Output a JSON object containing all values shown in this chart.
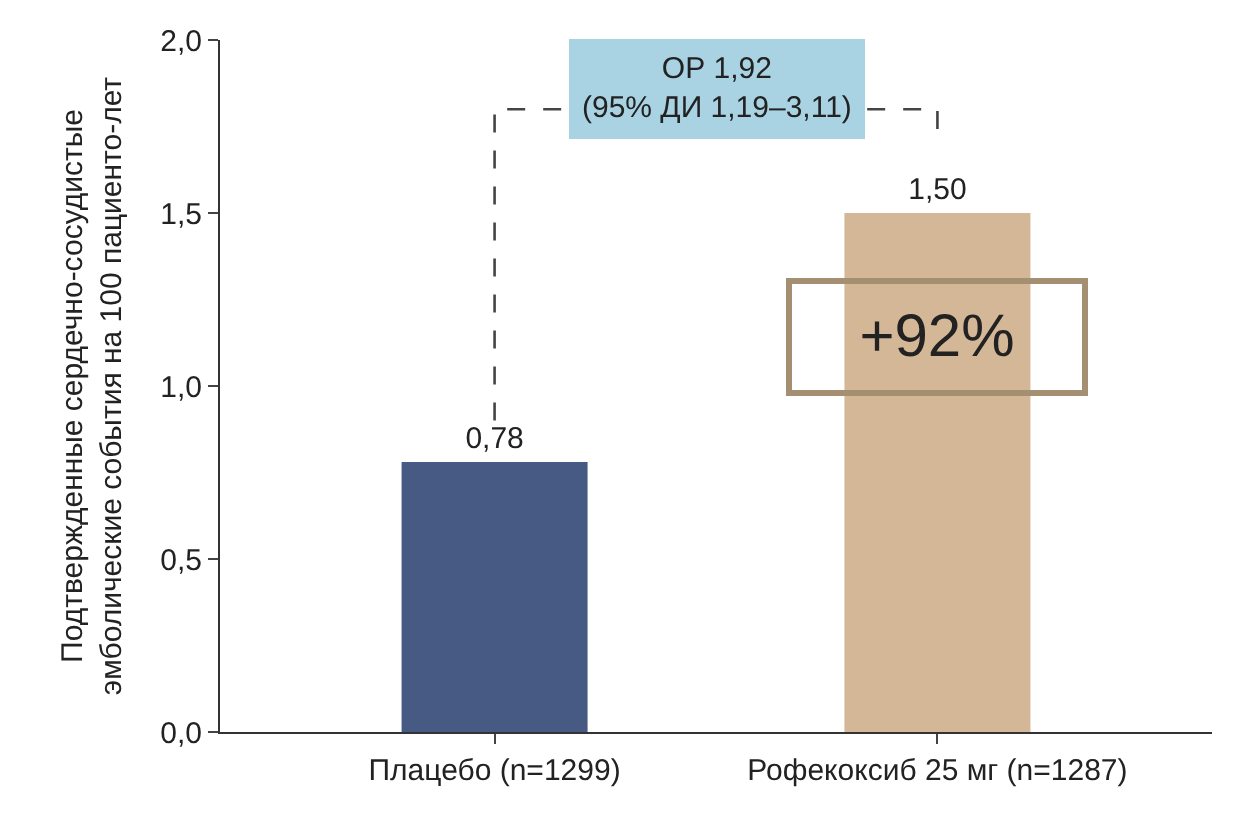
{
  "chart_data": {
    "type": "bar",
    "ylabel": "Подтвержденные сердечно-сосудистые\nэмболические события на 100 пациенто-лет",
    "categories": [
      "Плацебо (n=1299)",
      "Рофекоксиб 25 мг (n=1287)"
    ],
    "values": [
      0.78,
      1.5
    ],
    "colors": [
      "#475a84",
      "#d4b796"
    ],
    "value_labels": [
      "0,78",
      "1,50"
    ],
    "ylim": [
      0,
      2
    ],
    "yticks": [
      {
        "value": 0,
        "label": "0,0"
      },
      {
        "value": 0.5,
        "label": "0,5"
      },
      {
        "value": 1,
        "label": "1,0"
      },
      {
        "value": 1.5,
        "label": "1,5"
      },
      {
        "value": 2,
        "label": "2,0"
      }
    ],
    "annotations": [
      "ОР 1,92\n(95% ДИ 1,19–3,11)",
      "+92%"
    ]
  }
}
